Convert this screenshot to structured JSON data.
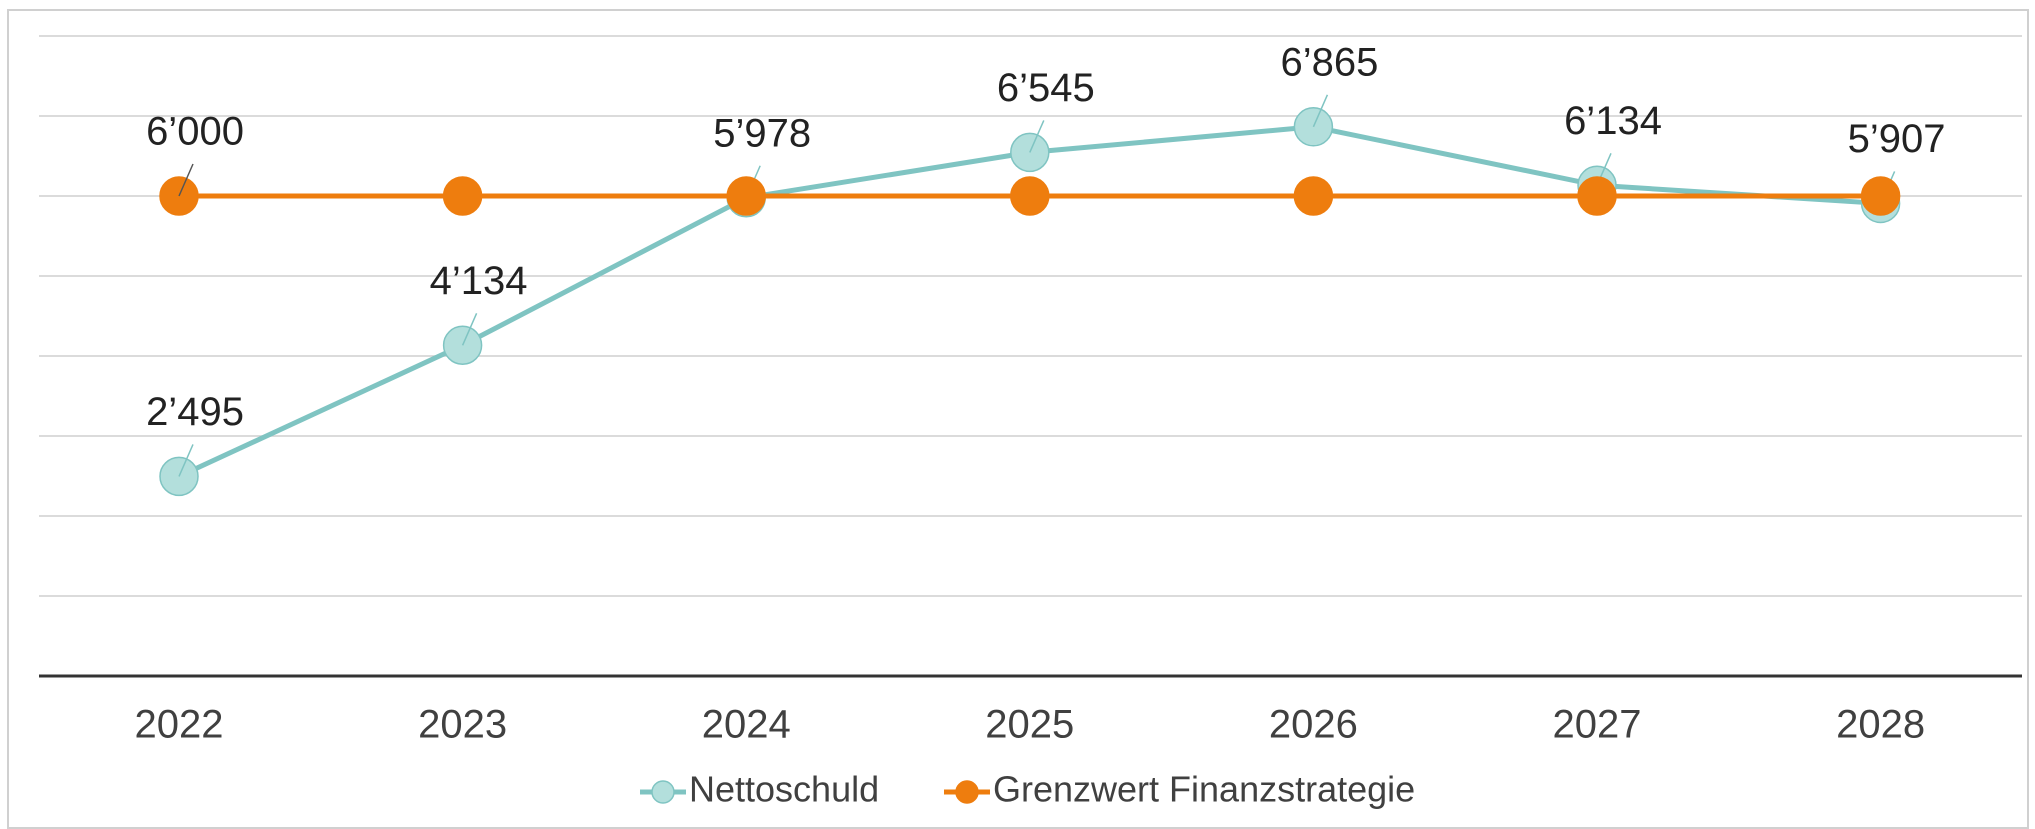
{
  "chart_data": {
    "type": "line",
    "categories": [
      "2022",
      "2023",
      "2024",
      "2025",
      "2026",
      "2027",
      "2028"
    ],
    "series": [
      {
        "name": "Nettoschuld",
        "color": "#7fc4c2",
        "marker_fill": "#b3dfdc",
        "values": [
          2495,
          4134,
          5978,
          6545,
          6865,
          6134,
          5907
        ],
        "value_labels": [
          "2’495",
          "4’134",
          "5’978",
          "6’545",
          "6’865",
          "6’134",
          "5’907"
        ]
      },
      {
        "name": "Grenzwert Finanzstrategie",
        "color": "#ee7d0e",
        "marker_fill": "#ee7d0e",
        "values": [
          6000,
          6000,
          6000,
          6000,
          6000,
          6000,
          6000
        ],
        "value_labels": [
          "6’000",
          null,
          null,
          null,
          null,
          null,
          null
        ]
      }
    ],
    "ylim": [
      0,
      8000
    ],
    "yticks": [
      0,
      1000,
      2000,
      3000,
      4000,
      5000,
      6000,
      7000,
      8000
    ],
    "grid": true,
    "legend": "bottom"
  }
}
